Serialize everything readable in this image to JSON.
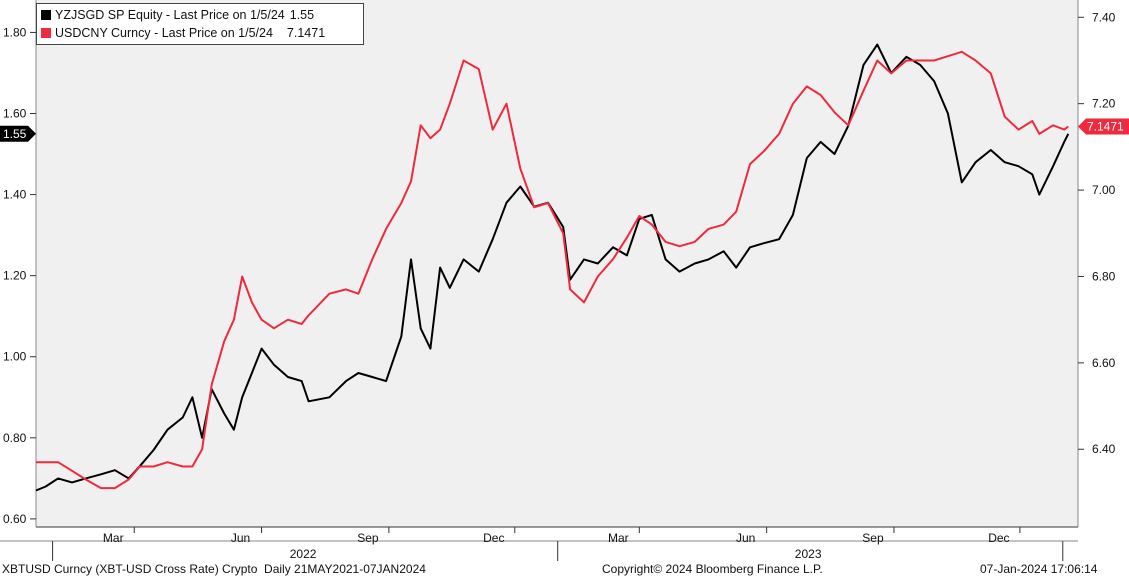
{
  "chart_data": {
    "type": "line",
    "legend": [
      {
        "text": "YZJSGD SP Equity - Last Price on 1/5/24",
        "value": "1.55",
        "color": "#000000"
      },
      {
        "text": "USDCNY Curncy - Last Price on 1/5/24",
        "value": "7.1471",
        "color": "#ee2a3e"
      }
    ],
    "left_axis": {
      "ticks": [
        "1.80",
        "1.60",
        "1.40",
        "1.20",
        "1.00",
        "0.80",
        "0.60"
      ],
      "range": [
        0.58,
        1.88
      ],
      "last_label": "1.55"
    },
    "right_axis": {
      "ticks": [
        "7.40",
        "7.20",
        "7.00",
        "6.80",
        "6.60",
        "6.40"
      ],
      "range": [
        6.22,
        7.44
      ],
      "last_label": "7.1471"
    },
    "x_months": [
      "Mar",
      "Jun",
      "Sep",
      "Dec",
      "Mar",
      "Jun",
      "Sep",
      "Dec"
    ],
    "x_years": [
      "2022",
      "2023"
    ],
    "series": [
      {
        "name": "YZJSGD SP Equity",
        "axis": "left",
        "color": "#000000",
        "points": [
          [
            "2021-12-20",
            0.67
          ],
          [
            "2021-12-27",
            0.68
          ],
          [
            "2022-01-05",
            0.7
          ],
          [
            "2022-01-15",
            0.69
          ],
          [
            "2022-01-25",
            0.7
          ],
          [
            "2022-02-05",
            0.71
          ],
          [
            "2022-02-15",
            0.72
          ],
          [
            "2022-02-25",
            0.7
          ],
          [
            "2022-03-05",
            0.73
          ],
          [
            "2022-03-15",
            0.77
          ],
          [
            "2022-03-25",
            0.82
          ],
          [
            "2022-04-05",
            0.85
          ],
          [
            "2022-04-12",
            0.9
          ],
          [
            "2022-04-19",
            0.8
          ],
          [
            "2022-04-26",
            0.92
          ],
          [
            "2022-05-05",
            0.86
          ],
          [
            "2022-05-12",
            0.82
          ],
          [
            "2022-05-18",
            0.9
          ],
          [
            "2022-05-25",
            0.96
          ],
          [
            "2022-06-01",
            1.02
          ],
          [
            "2022-06-10",
            0.98
          ],
          [
            "2022-06-20",
            0.95
          ],
          [
            "2022-06-30",
            0.94
          ],
          [
            "2022-07-05",
            0.89
          ],
          [
            "2022-07-20",
            0.9
          ],
          [
            "2022-08-01",
            0.94
          ],
          [
            "2022-08-10",
            0.96
          ],
          [
            "2022-08-20",
            0.95
          ],
          [
            "2022-08-30",
            0.94
          ],
          [
            "2022-09-10",
            1.05
          ],
          [
            "2022-09-17",
            1.24
          ],
          [
            "2022-09-24",
            1.07
          ],
          [
            "2022-10-01",
            1.02
          ],
          [
            "2022-10-08",
            1.22
          ],
          [
            "2022-10-15",
            1.17
          ],
          [
            "2022-10-25",
            1.24
          ],
          [
            "2022-11-05",
            1.21
          ],
          [
            "2022-11-15",
            1.29
          ],
          [
            "2022-11-25",
            1.38
          ],
          [
            "2022-12-05",
            1.42
          ],
          [
            "2022-12-15",
            1.37
          ],
          [
            "2022-12-25",
            1.38
          ],
          [
            "2023-01-05",
            1.32
          ],
          [
            "2023-01-10",
            1.19
          ],
          [
            "2023-01-20",
            1.24
          ],
          [
            "2023-01-30",
            1.23
          ],
          [
            "2023-02-10",
            1.27
          ],
          [
            "2023-02-20",
            1.25
          ],
          [
            "2023-03-01",
            1.34
          ],
          [
            "2023-03-10",
            1.35
          ],
          [
            "2023-03-20",
            1.24
          ],
          [
            "2023-03-30",
            1.21
          ],
          [
            "2023-04-10",
            1.23
          ],
          [
            "2023-04-20",
            1.24
          ],
          [
            "2023-05-01",
            1.26
          ],
          [
            "2023-05-10",
            1.22
          ],
          [
            "2023-05-20",
            1.27
          ],
          [
            "2023-05-30",
            1.28
          ],
          [
            "2023-06-10",
            1.29
          ],
          [
            "2023-06-20",
            1.35
          ],
          [
            "2023-06-30",
            1.49
          ],
          [
            "2023-07-10",
            1.53
          ],
          [
            "2023-07-20",
            1.5
          ],
          [
            "2023-07-30",
            1.57
          ],
          [
            "2023-08-10",
            1.72
          ],
          [
            "2023-08-20",
            1.77
          ],
          [
            "2023-08-30",
            1.7
          ],
          [
            "2023-09-10",
            1.74
          ],
          [
            "2023-09-20",
            1.72
          ],
          [
            "2023-09-30",
            1.68
          ],
          [
            "2023-10-10",
            1.6
          ],
          [
            "2023-10-20",
            1.43
          ],
          [
            "2023-10-30",
            1.48
          ],
          [
            "2023-11-10",
            1.51
          ],
          [
            "2023-11-20",
            1.48
          ],
          [
            "2023-11-30",
            1.47
          ],
          [
            "2023-12-10",
            1.45
          ],
          [
            "2023-12-15",
            1.4
          ],
          [
            "2023-12-25",
            1.47
          ],
          [
            "2024-01-02",
            1.53
          ],
          [
            "2024-01-05",
            1.55
          ]
        ]
      },
      {
        "name": "USDCNY Curncy",
        "axis": "right",
        "color": "#ee2a3e",
        "points": [
          [
            "2021-12-20",
            6.37
          ],
          [
            "2021-12-27",
            6.37
          ],
          [
            "2022-01-05",
            6.37
          ],
          [
            "2022-01-15",
            6.35
          ],
          [
            "2022-01-25",
            6.33
          ],
          [
            "2022-02-05",
            6.31
          ],
          [
            "2022-02-15",
            6.31
          ],
          [
            "2022-02-25",
            6.33
          ],
          [
            "2022-03-05",
            6.36
          ],
          [
            "2022-03-15",
            6.36
          ],
          [
            "2022-03-25",
            6.37
          ],
          [
            "2022-04-05",
            6.36
          ],
          [
            "2022-04-12",
            6.36
          ],
          [
            "2022-04-19",
            6.4
          ],
          [
            "2022-04-26",
            6.55
          ],
          [
            "2022-05-05",
            6.65
          ],
          [
            "2022-05-12",
            6.7
          ],
          [
            "2022-05-18",
            6.8
          ],
          [
            "2022-05-25",
            6.74
          ],
          [
            "2022-06-01",
            6.7
          ],
          [
            "2022-06-10",
            6.68
          ],
          [
            "2022-06-20",
            6.7
          ],
          [
            "2022-06-30",
            6.69
          ],
          [
            "2022-07-05",
            6.71
          ],
          [
            "2022-07-20",
            6.76
          ],
          [
            "2022-08-01",
            6.77
          ],
          [
            "2022-08-10",
            6.76
          ],
          [
            "2022-08-20",
            6.84
          ],
          [
            "2022-08-30",
            6.91
          ],
          [
            "2022-09-10",
            6.97
          ],
          [
            "2022-09-17",
            7.02
          ],
          [
            "2022-09-24",
            7.15
          ],
          [
            "2022-10-01",
            7.12
          ],
          [
            "2022-10-08",
            7.14
          ],
          [
            "2022-10-15",
            7.2
          ],
          [
            "2022-10-25",
            7.3
          ],
          [
            "2022-11-05",
            7.28
          ],
          [
            "2022-11-15",
            7.14
          ],
          [
            "2022-11-25",
            7.2
          ],
          [
            "2022-12-05",
            7.05
          ],
          [
            "2022-12-15",
            6.96
          ],
          [
            "2022-12-25",
            6.97
          ],
          [
            "2023-01-05",
            6.9
          ],
          [
            "2023-01-10",
            6.77
          ],
          [
            "2023-01-20",
            6.74
          ],
          [
            "2023-01-30",
            6.8
          ],
          [
            "2023-02-10",
            6.84
          ],
          [
            "2023-02-20",
            6.89
          ],
          [
            "2023-03-01",
            6.94
          ],
          [
            "2023-03-10",
            6.92
          ],
          [
            "2023-03-20",
            6.88
          ],
          [
            "2023-03-30",
            6.87
          ],
          [
            "2023-04-10",
            6.88
          ],
          [
            "2023-04-20",
            6.91
          ],
          [
            "2023-05-01",
            6.92
          ],
          [
            "2023-05-10",
            6.95
          ],
          [
            "2023-05-20",
            7.06
          ],
          [
            "2023-05-30",
            7.09
          ],
          [
            "2023-06-10",
            7.13
          ],
          [
            "2023-06-20",
            7.2
          ],
          [
            "2023-06-30",
            7.24
          ],
          [
            "2023-07-10",
            7.22
          ],
          [
            "2023-07-20",
            7.18
          ],
          [
            "2023-07-30",
            7.15
          ],
          [
            "2023-08-10",
            7.23
          ],
          [
            "2023-08-20",
            7.3
          ],
          [
            "2023-08-30",
            7.27
          ],
          [
            "2023-09-10",
            7.3
          ],
          [
            "2023-09-20",
            7.3
          ],
          [
            "2023-09-30",
            7.3
          ],
          [
            "2023-10-10",
            7.31
          ],
          [
            "2023-10-20",
            7.32
          ],
          [
            "2023-10-30",
            7.3
          ],
          [
            "2023-11-10",
            7.27
          ],
          [
            "2023-11-20",
            7.17
          ],
          [
            "2023-11-30",
            7.14
          ],
          [
            "2023-12-10",
            7.16
          ],
          [
            "2023-12-15",
            7.13
          ],
          [
            "2023-12-25",
            7.15
          ],
          [
            "2024-01-02",
            7.14
          ],
          [
            "2024-01-05",
            7.1471
          ]
        ]
      }
    ],
    "grid": false
  },
  "footer": {
    "left": "XBTUSD Curncy (XBT-USD Cross Rate) Crypto  Daily 21MAY2021-07JAN2024",
    "center": "Copyright© 2024 Bloomberg Finance L.P.",
    "right": "07-Jan-2024 17:06:14"
  }
}
